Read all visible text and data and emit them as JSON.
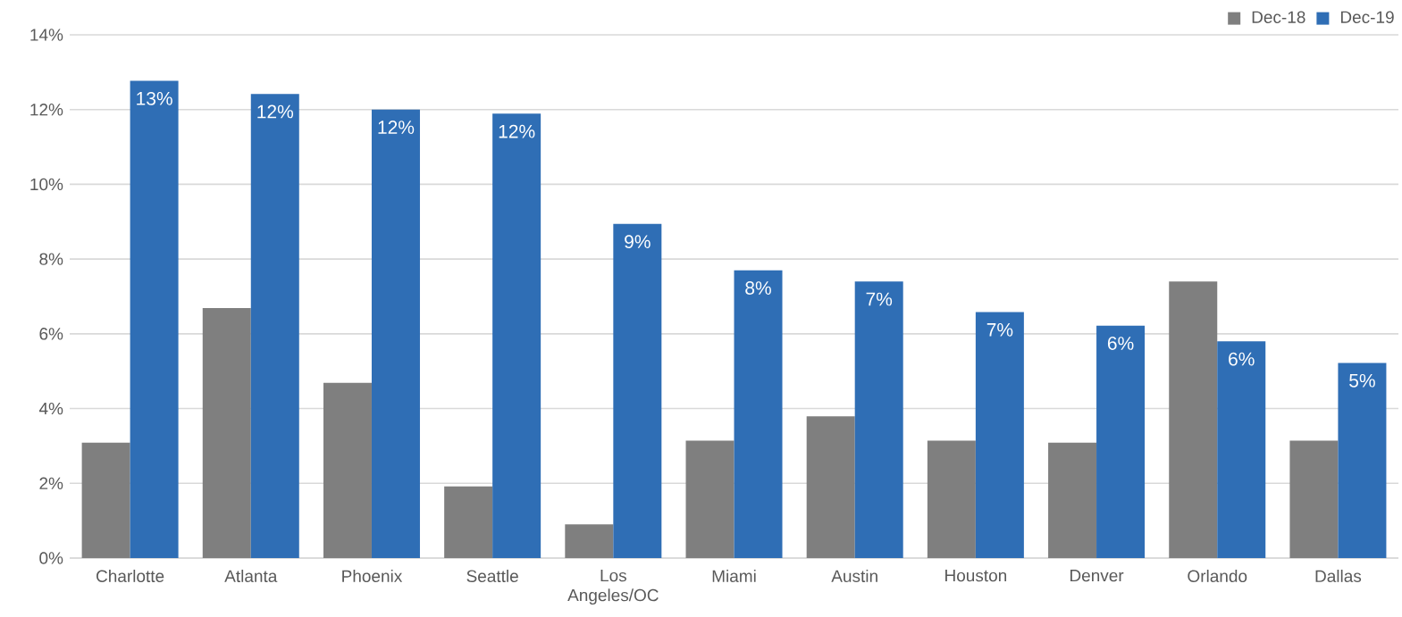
{
  "chart_data": {
    "type": "bar",
    "categories": [
      "Charlotte",
      "Atlanta",
      "Phoenix",
      "Seattle",
      "Los Angeles/OC",
      "Miami",
      "Austin",
      "Houston",
      "Denver",
      "Orlando",
      "Dallas"
    ],
    "series": [
      {
        "name": "Dec-18",
        "color": "#7f7f7f",
        "values": [
          3.09,
          6.69,
          4.69,
          1.92,
          0.9,
          3.14,
          3.79,
          3.14,
          3.09,
          7.4,
          3.14
        ]
      },
      {
        "name": "Dec-19",
        "color": "#2f6eb5",
        "values": [
          12.77,
          12.42,
          12.0,
          11.89,
          8.94,
          7.7,
          7.4,
          6.58,
          6.22,
          5.8,
          5.22
        ],
        "value_labels": [
          "13%",
          "12%",
          "12%",
          "12%",
          "9%",
          "8%",
          "7%",
          "7%",
          "6%",
          "6%",
          "5%"
        ]
      }
    ],
    "ylim": [
      0,
      14
    ],
    "yticks": [
      {
        "value": 0,
        "label": "0%"
      },
      {
        "value": 2,
        "label": "2%"
      },
      {
        "value": 4,
        "label": "4%"
      },
      {
        "value": 6,
        "label": "6%"
      },
      {
        "value": 8,
        "label": "8%"
      },
      {
        "value": 10,
        "label": "10%"
      },
      {
        "value": 12,
        "label": "12%"
      },
      {
        "value": 14,
        "label": "14%"
      }
    ],
    "grid": "y",
    "legend": "top right"
  }
}
